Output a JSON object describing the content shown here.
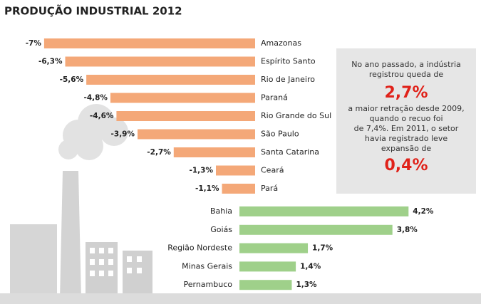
{
  "chart_data": [
    {
      "type": "bar",
      "orientation": "horizontal",
      "title": "PRODUÇÃO INDUSTRIAL 2012",
      "categories": [
        "Amazonas",
        "Espírito Santo",
        "Rio de Janeiro",
        "Paraná",
        "Rio Grande do Sul",
        "São Paulo",
        "Santa Catarina",
        "Ceará",
        "Pará"
      ],
      "values": [
        -7,
        -6.3,
        -5.6,
        -4.8,
        -4.6,
        -3.9,
        -2.7,
        -1.3,
        -1.1
      ],
      "value_labels": [
        "-7%",
        "-6,3%",
        "-5,6%",
        "-4,8%",
        "-4,6%",
        "-3,9%",
        "-2,7%",
        "-1,3%",
        "-1,1%"
      ],
      "color": "#f4a878"
    },
    {
      "type": "bar",
      "orientation": "horizontal",
      "categories": [
        "Bahia",
        "Goiás",
        "Região Nordeste",
        "Minas Gerais",
        "Pernambuco"
      ],
      "values": [
        4.2,
        3.8,
        1.7,
        1.4,
        1.3
      ],
      "value_labels": [
        "4,2%",
        "3,8%",
        "1,7%",
        "1,4%",
        "1,3%"
      ],
      "color": "#9fd08a"
    }
  ],
  "note": {
    "lines_before": [
      "No ano passado, a indústria",
      "registrou queda de"
    ],
    "highlight1": "2,7%",
    "lines_middle": [
      "a maior retração desde 2009,",
      "quando o recuo foi",
      "de 7,4%. Em 2011, o setor",
      "havia registrado leve",
      "expansão de"
    ],
    "highlight2": "0,4%"
  }
}
